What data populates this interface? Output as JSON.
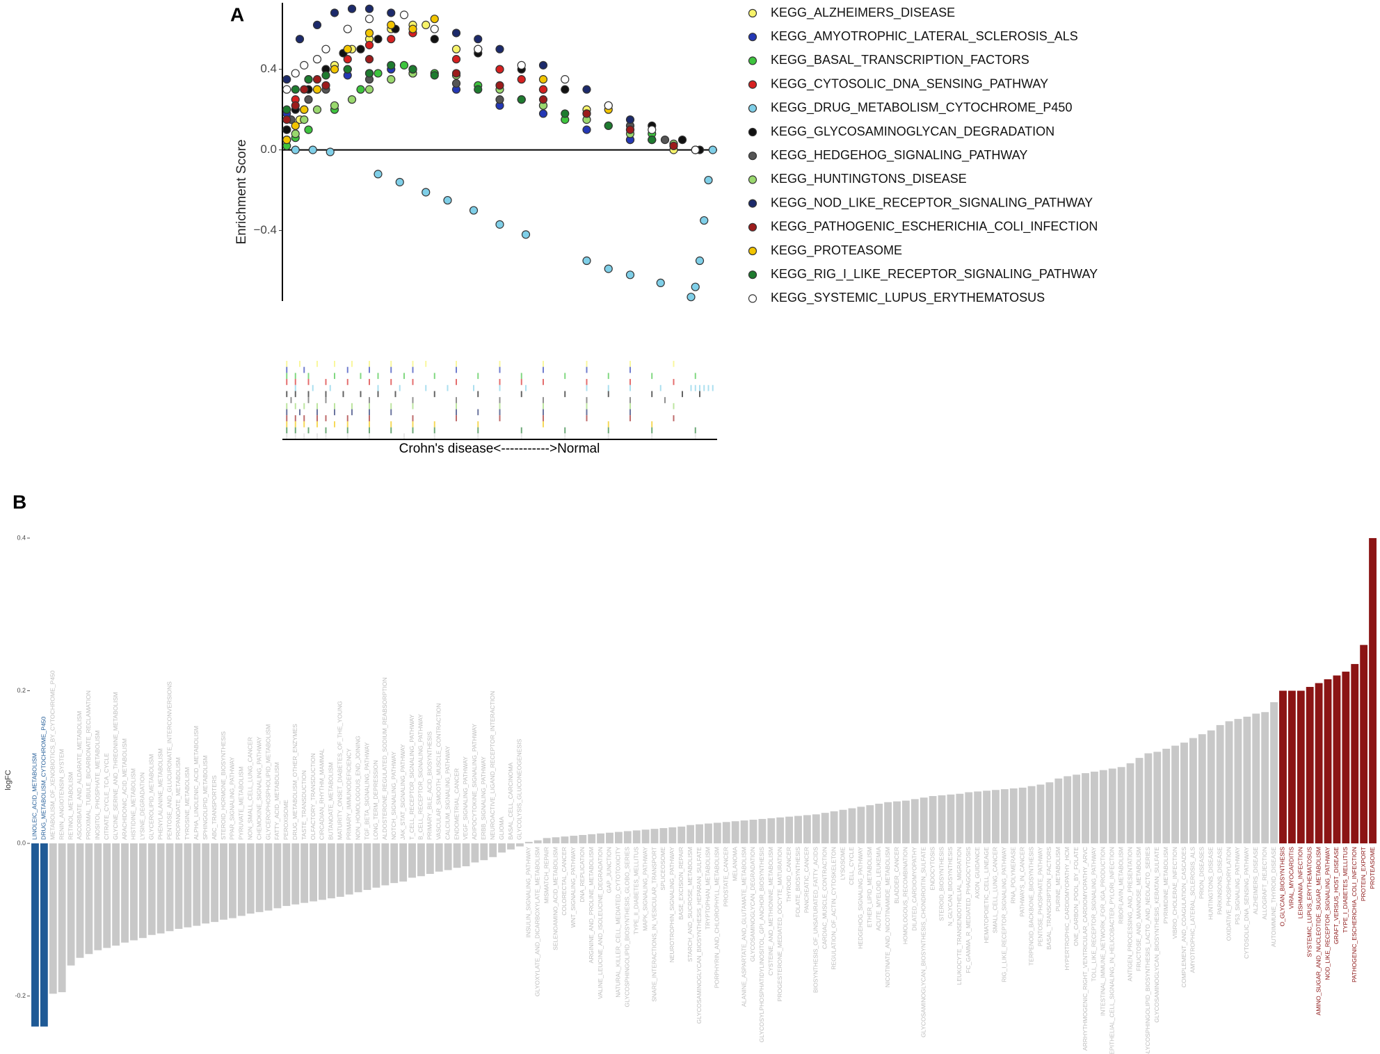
{
  "chart_data": [
    {
      "type": "scatter",
      "panel": "A",
      "ylabel": "Enrichment Score",
      "xlabel": "Crohn's disease<----------->Normal",
      "xlim": [
        0,
        100
      ],
      "ylim": [
        -0.75,
        0.73
      ],
      "yticks": [
        {
          "value": -0.4,
          "label": "−0.4"
        },
        {
          "value": 0,
          "label": "0.0"
        },
        0.4
      ],
      "series": [
        {
          "name": "KEGG_ALZHEIMERS_DISEASE",
          "color": "#f7f36a",
          "x": [
            1,
            4,
            8,
            12,
            16,
            20,
            25,
            30,
            33,
            40,
            50,
            60,
            70,
            80,
            90
          ],
          "values": [
            0.05,
            0.15,
            0.3,
            0.42,
            0.5,
            0.55,
            0.6,
            0.62,
            0.62,
            0.5,
            0.4,
            0.3,
            0.2,
            0.05,
            0.0
          ]
        },
        {
          "name": "KEGG_AMYOTROPHIC_LATERAL_SCLEROSIS_ALS",
          "color": "#2438b5",
          "x": [
            1,
            5,
            15,
            20,
            25,
            30,
            40,
            50,
            60,
            70,
            80
          ],
          "values": [
            0.18,
            0.2,
            0.37,
            0.38,
            0.4,
            0.4,
            0.3,
            0.22,
            0.18,
            0.1,
            0.05
          ]
        },
        {
          "name": "KEGG_BASAL_TRANSCRIPTION_FACTORS",
          "color": "#3ec43e",
          "x": [
            1,
            3,
            6,
            12,
            18,
            22,
            28,
            35,
            45,
            55,
            65,
            75,
            85,
            95
          ],
          "values": [
            0.02,
            0.06,
            0.1,
            0.2,
            0.3,
            0.38,
            0.42,
            0.38,
            0.32,
            0.25,
            0.15,
            0.12,
            0.08,
            0.0
          ]
        },
        {
          "name": "KEGG_CYTOSOLIC_DNA_SENSING_PATHWAY",
          "color": "#d62020",
          "x": [
            1,
            3,
            6,
            10,
            15,
            20,
            25,
            30,
            40,
            50,
            55,
            60,
            70,
            80,
            90
          ],
          "values": [
            0.1,
            0.25,
            0.35,
            0.4,
            0.45,
            0.52,
            0.55,
            0.58,
            0.45,
            0.4,
            0.35,
            0.3,
            0.18,
            0.1,
            0.02
          ]
        },
        {
          "name": "KEGG_DRUG_METABOLISM_CYTOCHROME_P450",
          "color": "#7fcfe8",
          "x": [
            3,
            7,
            11,
            22,
            27,
            33,
            38,
            44,
            50,
            56,
            70,
            75,
            80,
            87,
            94,
            95,
            96,
            97,
            98,
            99
          ],
          "values": [
            0.0,
            0.0,
            -0.01,
            -0.12,
            -0.16,
            -0.21,
            -0.25,
            -0.3,
            -0.37,
            -0.42,
            -0.55,
            -0.59,
            -0.62,
            -0.66,
            -0.73,
            -0.68,
            -0.55,
            -0.35,
            -0.15,
            0.0
          ]
        },
        {
          "name": "KEGG_GLYCOSAMINOGLYCAN_DEGRADATION",
          "color": "#111111",
          "x": [
            1,
            3,
            6,
            10,
            14,
            18,
            22,
            26,
            35,
            45,
            55,
            65,
            75,
            85,
            92,
            96
          ],
          "values": [
            0.1,
            0.2,
            0.3,
            0.4,
            0.48,
            0.5,
            0.55,
            0.6,
            0.55,
            0.48,
            0.4,
            0.3,
            0.22,
            0.12,
            0.05,
            0.0
          ]
        },
        {
          "name": "KEGG_HEDGEHOG_SIGNALING_PATHWAY",
          "color": "#555555",
          "x": [
            2,
            6,
            10,
            20,
            30,
            40,
            50,
            60,
            70,
            80,
            88
          ],
          "values": [
            0.15,
            0.25,
            0.3,
            0.35,
            0.38,
            0.33,
            0.25,
            0.22,
            0.18,
            0.12,
            0.05
          ]
        },
        {
          "name": "KEGG_HUNTINGTONS_DISEASE",
          "color": "#9ad86e",
          "x": [
            1,
            3,
            5,
            8,
            12,
            16,
            20,
            25,
            30,
            40,
            50,
            60,
            70,
            80,
            90
          ],
          "values": [
            0.05,
            0.08,
            0.15,
            0.2,
            0.22,
            0.25,
            0.3,
            0.35,
            0.38,
            0.37,
            0.3,
            0.22,
            0.15,
            0.08,
            0.03
          ]
        },
        {
          "name": "KEGG_NOD_LIKE_RECEPTOR_SIGNALING_PATHWAY",
          "color": "#1c2a6b",
          "x": [
            1,
            4,
            8,
            12,
            16,
            20,
            25,
            40,
            45,
            50,
            60,
            70,
            80
          ],
          "values": [
            0.35,
            0.55,
            0.62,
            0.68,
            0.7,
            0.7,
            0.68,
            0.58,
            0.55,
            0.5,
            0.42,
            0.3,
            0.15
          ]
        },
        {
          "name": "KEGG_PATHOGENIC_ESCHERICHIA_COLI_INFECTION",
          "color": "#9c1c1c",
          "x": [
            1,
            3,
            5,
            8,
            10,
            15,
            20,
            30,
            40,
            50,
            60,
            70,
            80,
            90
          ],
          "values": [
            0.15,
            0.22,
            0.3,
            0.35,
            0.32,
            0.4,
            0.45,
            0.4,
            0.38,
            0.32,
            0.25,
            0.18,
            0.1,
            0.02
          ]
        },
        {
          "name": "KEGG_PROTEASOME",
          "color": "#f2c500",
          "x": [
            1,
            3,
            5,
            8,
            12,
            15,
            20,
            25,
            30,
            35,
            45,
            60,
            75,
            85
          ],
          "values": [
            0.05,
            0.12,
            0.2,
            0.3,
            0.4,
            0.5,
            0.58,
            0.62,
            0.6,
            0.65,
            0.5,
            0.35,
            0.2,
            0.05
          ]
        },
        {
          "name": "KEGG_RIG_I_LIKE_RECEPTOR_SIGNALING_PATHWAY",
          "color": "#1e7b2f",
          "x": [
            1,
            3,
            6,
            10,
            15,
            20,
            25,
            30,
            35,
            45,
            55,
            65,
            75,
            85,
            95
          ],
          "values": [
            0.2,
            0.3,
            0.35,
            0.37,
            0.4,
            0.38,
            0.42,
            0.4,
            0.37,
            0.3,
            0.25,
            0.18,
            0.12,
            0.05,
            0.0
          ]
        },
        {
          "name": "KEGG_SYSTEMIC_LUPUS_ERYTHEMATOSUS",
          "color": "#ffffff",
          "x": [
            1,
            3,
            5,
            8,
            10,
            15,
            20,
            28,
            35,
            45,
            55,
            65,
            75,
            85,
            95
          ],
          "values": [
            0.3,
            0.38,
            0.42,
            0.45,
            0.5,
            0.6,
            0.65,
            0.67,
            0.6,
            0.5,
            0.42,
            0.35,
            0.22,
            0.1,
            0.0
          ]
        }
      ]
    },
    {
      "type": "bar",
      "panel": "B",
      "ylabel": "logFC",
      "ylim": [
        -0.245,
        0.42
      ],
      "yticks": [
        -0.2,
        {
          "value": 0,
          "label": "0.0"
        },
        0.2,
        0.4
      ],
      "groups": [
        {
          "color": "#1f5a96",
          "label_color": "#1f5a96",
          "categories": [
            "LINOLEIC_ACID_METABOLISM",
            "DRUG_METABOLISM_CYTOCHROME_P450"
          ],
          "values": [
            -0.24,
            -0.24
          ]
        },
        {
          "color": "#c8c8c8",
          "label_color": "#bdbdbd",
          "categories": [
            "METABOLISM_OF_XENOBIOTICS_BY_CYTOCHROME_P450",
            "RENIN_ANGIOTENSIN_SYSTEM",
            "RETINOL_METABOLISM",
            "ASCORBATE_AND_ALDARATE_METABOLISM",
            "PROXIMAL_TUBULE_BICARBONATE_RECLAMATION",
            "INOSITOL_PHOSPHATE_METABOLISM",
            "CITRATE_CYCLE_TCA_CYCLE",
            "GLYCINE_SERINE_AND_THREONINE_METABOLISM",
            "ARACHIDONIC_ACID_METABOLISM",
            "HISTIDINE_METABOLISM",
            "LYSINE_DEGRADATION",
            "GLYCEROLIPID_METABOLISM",
            "PHENYLALANINE_METABOLISM",
            "PENTOSE_AND_GLUCURONATE_INTERCONVERSIONS",
            "PROPANOATE_METABOLISM",
            "TYROSINE_METABOLISM",
            "ALPHA_LINOLENIC_ACID_METABOLISM",
            "SPHINGOLIPID_METABOLISM",
            "ABC_TRANSPORTERS",
            "STEROID_HORMONE_BIOSYNTHESIS",
            "PPAR_SIGNALING_PATHWAY",
            "PYRUVATE_METABOLISM",
            "NON_SMALL_CELL_LUNG_CANCER",
            "CHEMOKINE_SIGNALING_PATHWAY",
            "GLYCEROPHOSPHOLIPID_METABOLISM",
            "FATTY_ACID_METABOLISM",
            "PEROXISOME",
            "DRUG_METABOLISM_OTHER_ENZYMES",
            "TASTE_TRANSDUCTION",
            "OLFACTORY_TRANSDUCTION",
            "CIRCADIAN_RHYTHM_MAMMAL",
            "BUTANOATE_METABOLISM",
            "MATURITY_ONSET_DIABETES_OF_THE_YOUNG",
            "PRIMARY_IMMUNODEFICIENCY",
            "NON_HOMOLOGOUS_END_JOINING",
            "TGF_BETA_SIGNALING_PATHWAY",
            "LONG_TERM_DEPRESSION",
            "ALDOSTERONE_REGULATED_SODIUM_REABSORPTION",
            "NOTCH_SIGNALING_PATHWAY",
            "JAK_STAT_SIGNALING_PATHWAY",
            "T_CELL_RECEPTOR_SIGNALING_PATHWAY",
            "B_CELL_RECEPTOR_SIGNALING_PATHWAY",
            "PRIMARY_BILE_ACID_BIOSYNTHESIS",
            "VASCULAR_SMOOTH_MUSCLE_CONTRACTION",
            "CALCIUM_SIGNALING_PATHWAY",
            "ENDOMETRIAL_CANCER",
            "VEGF_SIGNALING_PATHWAY",
            "ADIPOCYTOKINE_SIGNALING_PATHWAY",
            "ERBB_SIGNALING_PATHWAY",
            "NEUROACTIVE_LIGAND_RECEPTOR_INTERACTION",
            "GLIOMA",
            "BASAL_CELL_CARCINOMA",
            "GLYCOLYSIS_GLUCONEOGENESIS",
            "INSULIN_SIGNALING_PATHWAY",
            "GLYOXYLATE_AND_DICARBOXYLATE_METABOLISM",
            "MISMATCH_REPAIR",
            "SELENOAMINO_ACID_METABOLISM",
            "COLORECTAL_CANCER",
            "WNT_SIGNALING_PATHWAY",
            "DNA_REPLICATION",
            "ARGININE_AND_PROLINE_METABOLISM",
            "VALINE_LEUCINE_AND_ISOLEUCINE_DEGRADATION",
            "GAP_JUNCTION",
            "NATURAL_KILLER_CELL_MEDIATED_CYTOTOXICITY",
            "GLYCOSPHINGOLIPID_BIOSYNTHESIS_GLOBO_SERIES",
            "TYPE_II_DIABETES_MELLITUS",
            "MAPK_SIGNALING_PATHWAY",
            "SNARE_INTERACTIONS_IN_VESICULAR_TRANSPORT",
            "SPLICEOSOME",
            "NEUROTROPHIN_SIGNALING_PATHWAY",
            "BASE_EXCISION_REPAIR",
            "STARCH_AND_SUCROSE_METABOLISM",
            "GLYCOSAMINOGLYCAN_BIOSYNTHESIS_HEPARAN_SULFATE",
            "TRYPTOPHAN_METABOLISM",
            "PORPHYRIN_AND_CHLOROPHYLL_METABOLISM",
            "PROSTATE_CANCER",
            "MELANOMA",
            "ALANINE_ASPARTATE_AND_GLUTAMATE_METABOLISM",
            "GLYCOSAMINOGLYCAN_DEGRADATION",
            "GLYCOSYLPHOSPHATIDYLINOSITOL_GPI_ANCHOR_BIOSYNTHESIS",
            "CYSTEINE_AND_METHIONINE_METABOLISM",
            "PROGESTERONE_MEDIATED_OOCYTE_MATURATION",
            "THYROID_CANCER",
            "FOLATE_BIOSYNTHESIS",
            "PANCREATIC_CANCER",
            "BIOSYNTHESIS_OF_UNSATURATED_FATTY_ACIDS",
            "CARDIAC_MUSCLE_CONTRACTION",
            "REGULATION_OF_ACTIN_CYTOSKELETON",
            "LYSOSOME",
            "CELL_CYCLE",
            "HEDGEHOG_SIGNALING_PATHWAY",
            "ETHER_LIPID_METABOLISM",
            "ACUTE_MYELOID_LEUKEMIA",
            "NICOTINATE_AND_NICOTINAMIDE_METABOLISM",
            "BLADDER_CANCER",
            "HOMOLOGOUS_RECOMBINATION",
            "DILATED_CARDIOMYOPATHY",
            "GLYCOSAMINOGLYCAN_BIOSYNTHESIS_CHONDROITIN_SULFATE",
            "ENDOCYTOSIS",
            "STEROID_BIOSYNTHESIS",
            "N_GLYCAN_BIOSYNTHESIS",
            "LEUKOCYTE_TRANSENDOTHELIAL_MIGRATION",
            "FC_GAMMA_R_MEDIATED_PHAGOCYTOSIS",
            "AXON_GUIDANCE",
            "HEMATOPOIETIC_CELL_LINEAGE",
            "SMALL_CELL_LUNG_CANCER",
            "RIG_I_LIKE_RECEPTOR_SIGNALING_PATHWAY",
            "RNA_POLYMERASE",
            "PATHWAYS_IN_CANCER",
            "TERPENOID_BACKBONE_BIOSYNTHESIS",
            "PENTOSE_PHOSPHATE_PATHWAY",
            "BASAL_TRANSCRIPTION_FACTORS",
            "PURINE_METABOLISM",
            "HYPERTROPHIC_CARDIOMYOPATHY_HCM",
            "ONE_CARBON_POOL_BY_FOLATE",
            "ARRHYTHMOGENIC_RIGHT_VENTRICULAR_CARDIOMYOPATHY_ARVC",
            "TOLL_LIKE_RECEPTOR_SIGNALING_PATHWAY",
            "INTESTINAL_IMMUNE_NETWORK_FOR_IGA_PRODUCTION",
            "EPITHELIAL_CELL_SIGNALING_IN_HELICOBACTER_PYLORI_INFECTION",
            "RIBOFLAVIN_METABOLISM",
            "ANTIGEN_PROCESSING_AND_PRESENTATION",
            "FRUCTOSE_AND_MANNOSE_METABOLISM",
            "GLYCOSPHINGOLIPID_BIOSYNTHESIS_LACTO_AND_NEOLACTO_SERIES",
            "GLYCOSAMINOGLYCAN_BIOSYNTHESIS_KERATAN_SULFATE",
            "PYRIMIDINE_METABOLISM",
            "VIBRIO_CHOLERAE_INFECTION",
            "COMPLEMENT_AND_COAGULATION_CASCADES",
            "AMYOTROPHIC_LATERAL_SCLEROSIS_ALS",
            "PRION_DISEASES",
            "HUNTINGTONS_DISEASE",
            "PARKINSONS_DISEASE",
            "OXIDATIVE_PHOSPHORYLATION",
            "P53_SIGNALING_PATHWAY",
            "CYTOSOLIC_DNA_SENSING_PATHWAY",
            "ALZHEIMERS_DISEASE",
            "ALLOGRAFT_REJECTION",
            "AUTOIMMUNE_THYROID_DISEASE"
          ],
          "values": [
            -0.197,
            -0.195,
            -0.16,
            -0.15,
            -0.145,
            -0.14,
            -0.137,
            -0.134,
            -0.13,
            -0.127,
            -0.124,
            -0.12,
            -0.118,
            -0.115,
            -0.112,
            -0.11,
            -0.108,
            -0.105,
            -0.103,
            -0.1,
            -0.098,
            -0.095,
            -0.092,
            -0.09,
            -0.088,
            -0.085,
            -0.082,
            -0.08,
            -0.078,
            -0.076,
            -0.074,
            -0.072,
            -0.07,
            -0.067,
            -0.064,
            -0.061,
            -0.058,
            -0.055,
            -0.052,
            -0.05,
            -0.045,
            -0.043,
            -0.04,
            -0.037,
            -0.035,
            -0.032,
            -0.03,
            -0.025,
            -0.022,
            -0.018,
            -0.012,
            -0.008,
            -0.004,
            0.002,
            0.004,
            0.007,
            0.008,
            0.009,
            0.01,
            0.011,
            0.012,
            0.013,
            0.014,
            0.015,
            0.016,
            0.017,
            0.018,
            0.019,
            0.02,
            0.021,
            0.022,
            0.024,
            0.025,
            0.026,
            0.027,
            0.028,
            0.029,
            0.03,
            0.031,
            0.032,
            0.033,
            0.034,
            0.035,
            0.036,
            0.037,
            0.038,
            0.04,
            0.042,
            0.044,
            0.046,
            0.048,
            0.05,
            0.052,
            0.054,
            0.055,
            0.056,
            0.058,
            0.06,
            0.062,
            0.063,
            0.064,
            0.065,
            0.067,
            0.068,
            0.069,
            0.07,
            0.071,
            0.072,
            0.073,
            0.075,
            0.077,
            0.08,
            0.085,
            0.088,
            0.09,
            0.092,
            0.094,
            0.096,
            0.098,
            0.1,
            0.105,
            0.112,
            0.118,
            0.12,
            0.124,
            0.128,
            0.132,
            0.138,
            0.143,
            0.148,
            0.155,
            0.16,
            0.163,
            0.166,
            0.17,
            0.172,
            0.185
          ]
        },
        {
          "color": "#8b1414",
          "label_color": "#8b1414",
          "categories": [
            "O_GLYCAN_BIOSYNTHESIS",
            "VIRAL_MYOCARDITIS",
            "LEISHMANIA_INFECTION",
            "SYSTEMIC_LUPUS_ERYTHEMATOSUS",
            "AMINO_SUGAR_AND_NUCLEOTIDE_SUGAR_METABOLISM",
            "NOD_LIKE_RECEPTOR_SIGNALING_PATHWAY",
            "GRAFT_VERSUS_HOST_DISEASE",
            "TYPE_I_DIABETES_MELLITUS",
            "PATHOGENIC_ESCHERICHIA_COLI_INFECTION",
            "PROTEIN_EXPORT",
            "PROTEASOME"
          ],
          "values": [
            0.2,
            0.2,
            0.2,
            0.205,
            0.21,
            0.215,
            0.22,
            0.225,
            0.235,
            0.26,
            0.4
          ]
        }
      ]
    }
  ]
}
